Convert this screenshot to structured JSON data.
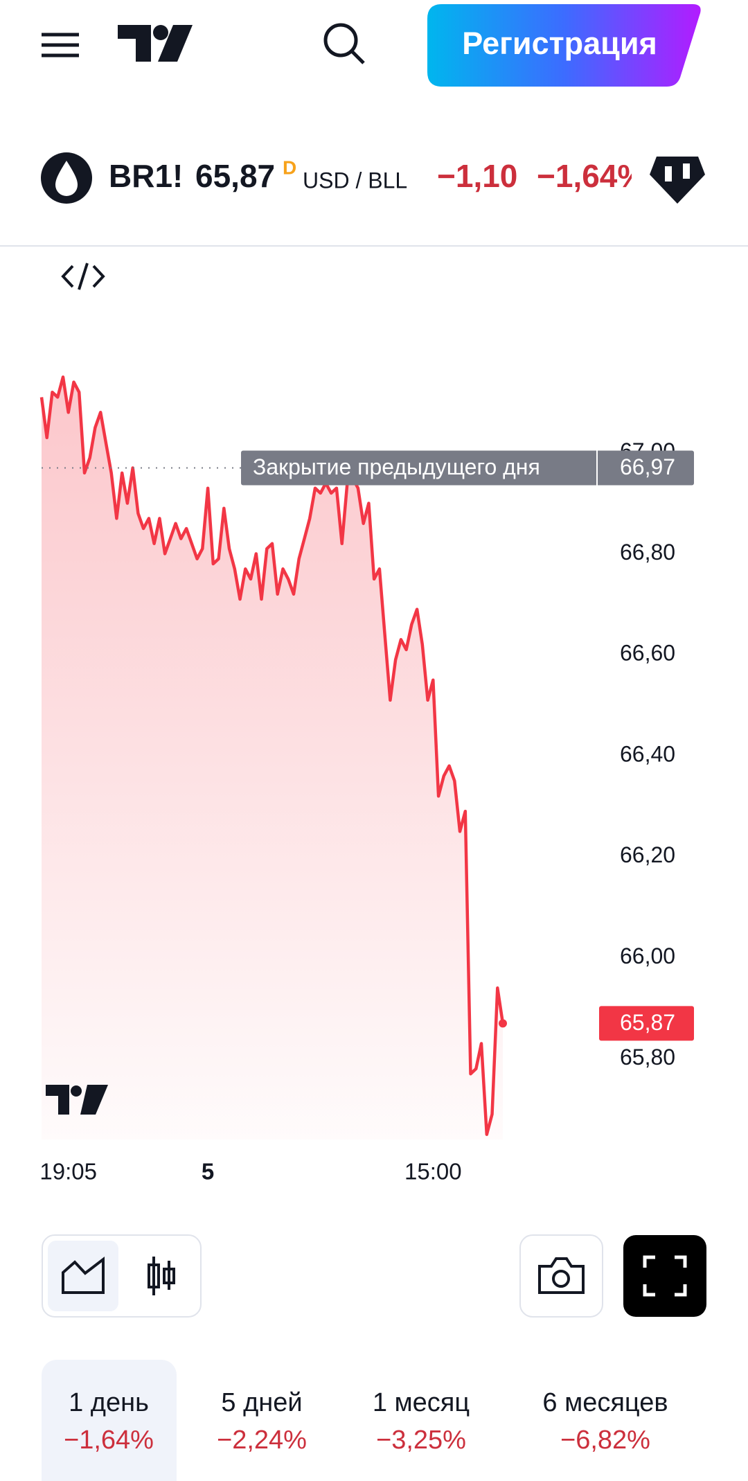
{
  "header": {
    "button": "Регистрация"
  },
  "symbol": {
    "ticker": "BR1!",
    "price": "65,87",
    "flag": "D",
    "currency": "USD / BLL",
    "change": "−1,10",
    "change_pct": "−1,64%"
  },
  "chart_data": {
    "type": "line",
    "color": "#f23645",
    "categories": [
      null,
      null,
      null,
      null,
      null,
      "19:05",
      null,
      null,
      null,
      null,
      null,
      null,
      null,
      null,
      null,
      null,
      null,
      null,
      null,
      null,
      null,
      null,
      null,
      null,
      null,
      null,
      null,
      null,
      null,
      null,
      null,
      "5",
      null,
      null,
      null,
      null,
      null,
      null,
      null,
      null,
      null,
      null,
      null,
      null,
      null,
      null,
      null,
      null,
      null,
      null,
      null,
      null,
      null,
      null,
      null,
      null,
      null,
      null,
      null,
      null,
      null,
      null,
      null,
      null,
      null,
      null,
      null,
      null,
      null,
      null,
      null,
      null,
      null,
      "15:00",
      null,
      null,
      null,
      null,
      null,
      null,
      null,
      null,
      null,
      null,
      null,
      null,
      null
    ],
    "values": [
      67.11,
      67.03,
      67.12,
      67.11,
      67.15,
      67.08,
      67.14,
      67.12,
      66.96,
      66.99,
      67.05,
      67.08,
      67.02,
      66.96,
      66.87,
      66.96,
      66.9,
      66.97,
      66.88,
      66.85,
      66.87,
      66.82,
      66.87,
      66.8,
      66.83,
      66.86,
      66.83,
      66.85,
      66.82,
      66.79,
      66.81,
      66.93,
      66.78,
      66.79,
      66.89,
      66.81,
      66.77,
      66.71,
      66.77,
      66.75,
      66.8,
      66.71,
      66.81,
      66.82,
      66.72,
      66.77,
      66.75,
      66.72,
      66.79,
      66.83,
      66.87,
      66.93,
      66.92,
      66.94,
      66.92,
      66.93,
      66.82,
      66.94,
      66.95,
      66.93,
      66.86,
      66.9,
      66.75,
      66.77,
      66.64,
      66.51,
      66.59,
      66.63,
      66.61,
      66.66,
      66.69,
      66.62,
      66.51,
      66.55,
      66.32,
      66.36,
      66.38,
      66.35,
      66.25,
      66.29,
      65.77,
      65.78,
      65.83,
      65.65,
      65.69,
      65.94,
      65.87
    ],
    "ylim": [
      65.64,
      67.16
    ],
    "yticks": [
      {
        "value": 65.8,
        "label": "65,80"
      },
      {
        "value": 66.0,
        "label": "66,00"
      },
      {
        "value": 66.2,
        "label": "66,20"
      },
      {
        "value": 66.4,
        "label": "66,40"
      },
      {
        "value": 66.6,
        "label": "66,60"
      },
      {
        "value": 66.8,
        "label": "66,80"
      },
      {
        "value": 67.0,
        "label": "67,00"
      }
    ],
    "prev_close": {
      "label": "Закрытие предыдущего дня",
      "value": 66.97,
      "value_label": "66,97"
    },
    "last": {
      "value": 65.87,
      "label": "65,87"
    }
  },
  "timeframes": [
    {
      "label": "1 день",
      "change": "−1,64%"
    },
    {
      "label": "5 дней",
      "change": "−2,24%"
    },
    {
      "label": "1 месяц",
      "change": "−3,25%"
    },
    {
      "label": "6 месяцев",
      "change": "−6,82%"
    }
  ]
}
